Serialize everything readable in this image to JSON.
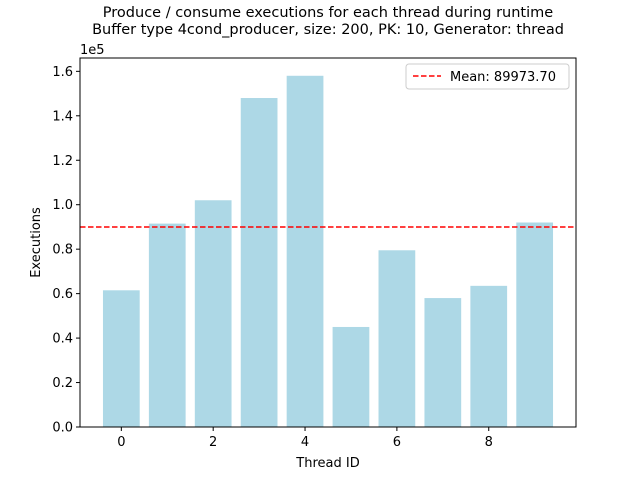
{
  "chart_data": {
    "type": "bar",
    "title_line1": "Produce / consume executions for each thread during runtime",
    "title_line2": "Buffer type 4cond_producer, size: 200, PK: 10, Generator: thread",
    "xlabel": "Thread ID",
    "ylabel": "Executions",
    "y_multiplier_label": "1e5",
    "x": [
      0,
      1,
      2,
      3,
      4,
      5,
      6,
      7,
      8,
      9
    ],
    "values": [
      61500,
      91500,
      102000,
      148000,
      158000,
      45000,
      79500,
      58000,
      63500,
      92000
    ],
    "xlim": [
      -0.9,
      9.9
    ],
    "ylim": [
      0,
      166000
    ],
    "x_ticks": [
      0,
      2,
      4,
      6,
      8
    ],
    "x_tick_labels": [
      "0",
      "2",
      "4",
      "6",
      "8"
    ],
    "y_ticks": [
      0,
      20000,
      40000,
      60000,
      80000,
      100000,
      120000,
      140000,
      160000
    ],
    "y_tick_labels": [
      "0.0",
      "0.2",
      "0.4",
      "0.6",
      "0.8",
      "1.0",
      "1.2",
      "1.4",
      "1.6"
    ],
    "mean": 89973.7,
    "legend": {
      "label": "Mean: 89973.70",
      "placement": "top-right"
    },
    "grid": false,
    "colors": {
      "bar": "#add8e6",
      "mean_line": "#ff0000",
      "axes": "#000000"
    }
  }
}
